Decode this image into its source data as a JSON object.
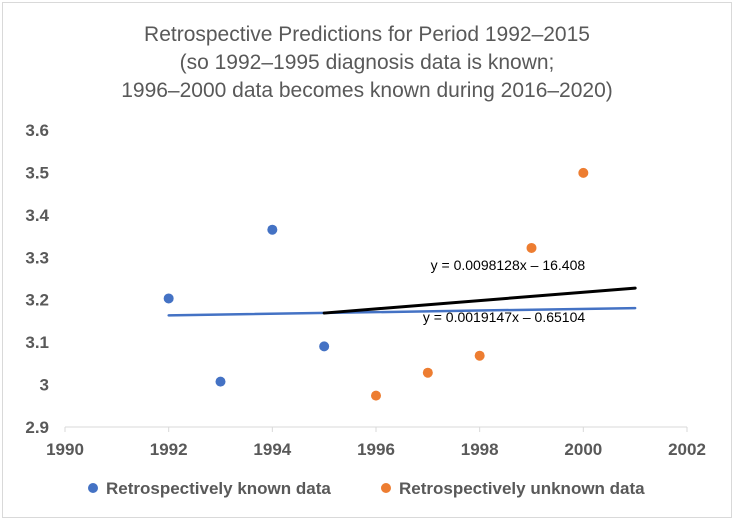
{
  "chart_data": {
    "type": "scatter",
    "title": [
      "Retrospective Predictions for Period 1992–2015",
      "(so 1992–1995 diagnosis data is known;",
      "1996–2000 data becomes known during 2016–2020)"
    ],
    "xlabel": "",
    "ylabel": "",
    "xlim": [
      1990,
      2002
    ],
    "ylim": [
      2.9,
      3.6
    ],
    "xticks": [
      1990,
      1992,
      1994,
      1996,
      1998,
      2000,
      2002
    ],
    "yticks": [
      2.9,
      3,
      3.1,
      3.2,
      3.3,
      3.4,
      3.5,
      3.6
    ],
    "ytick_labels": [
      "2.9",
      "3",
      "3.1",
      "3.2",
      "3.3",
      "3.4",
      "3.5",
      "3.6"
    ],
    "grid": false,
    "legend_position": "bottom",
    "series": [
      {
        "name": "Retrospectively known data",
        "color": "#4472c4",
        "x": [
          1992,
          1993,
          1994,
          1995
        ],
        "y": [
          3.203,
          3.007,
          3.365,
          3.09
        ]
      },
      {
        "name": "Retrospectively unknown data",
        "color": "#ed7d31",
        "x": [
          1996,
          1997,
          1998,
          1999,
          2000
        ],
        "y": [
          2.974,
          3.028,
          3.068,
          3.322,
          3.499
        ]
      }
    ],
    "trendlines": [
      {
        "color": "#4472c4",
        "equation": "y = 0.0019147x – 0.65104",
        "x_range": [
          1992,
          2001
        ],
        "slope": 0.0019147,
        "intercept": -0.65104
      },
      {
        "color": "#000000",
        "equation": "y = 0.0098128x – 16.408",
        "x_range": [
          1995,
          2001
        ],
        "slope": 0.0098128,
        "intercept": -16.408
      }
    ]
  }
}
